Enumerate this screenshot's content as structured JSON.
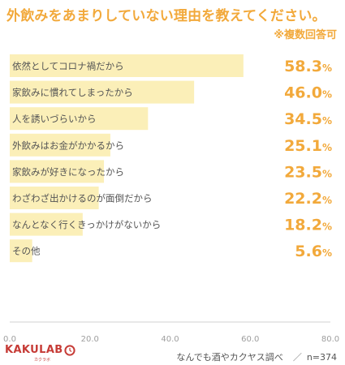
{
  "header": {
    "title": "外飲みをあまりしていない理由を教えてください。",
    "note": "※複数回答可"
  },
  "chart_data": {
    "type": "bar",
    "orientation": "horizontal",
    "categories": [
      "依然としてコロナ禍だから",
      "家飲みに慣れてしまったから",
      "人を誘いづらいから",
      "外飲みはお金がかかるから",
      "家飲みが好きになったから",
      "わざわざ出かけるのが面倒だから",
      "なんとなく行くきっかけがないから",
      "その他"
    ],
    "values": [
      58.3,
      46.0,
      34.5,
      25.1,
      23.5,
      22.2,
      18.2,
      5.6
    ],
    "value_labels": [
      "58.3",
      "46.0",
      "34.5",
      "25.1",
      "23.5",
      "22.2",
      "18.2",
      "5.6"
    ],
    "value_unit": "%",
    "x_ticks": [
      "0.0",
      "20.0",
      "40.0",
      "60.0",
      "80.0"
    ],
    "xlim": [
      0,
      80
    ],
    "grid": false,
    "colors": {
      "bar": "#fbefb8",
      "value": "#f2a93b",
      "label": "#555555",
      "axis": "#9e9e9e"
    }
  },
  "footer": {
    "brand": "KAKULAB",
    "brand_sub": "カクラボ",
    "source": "なんでも酒やカクヤス調べ",
    "separator": "／",
    "sample": "n=374"
  }
}
